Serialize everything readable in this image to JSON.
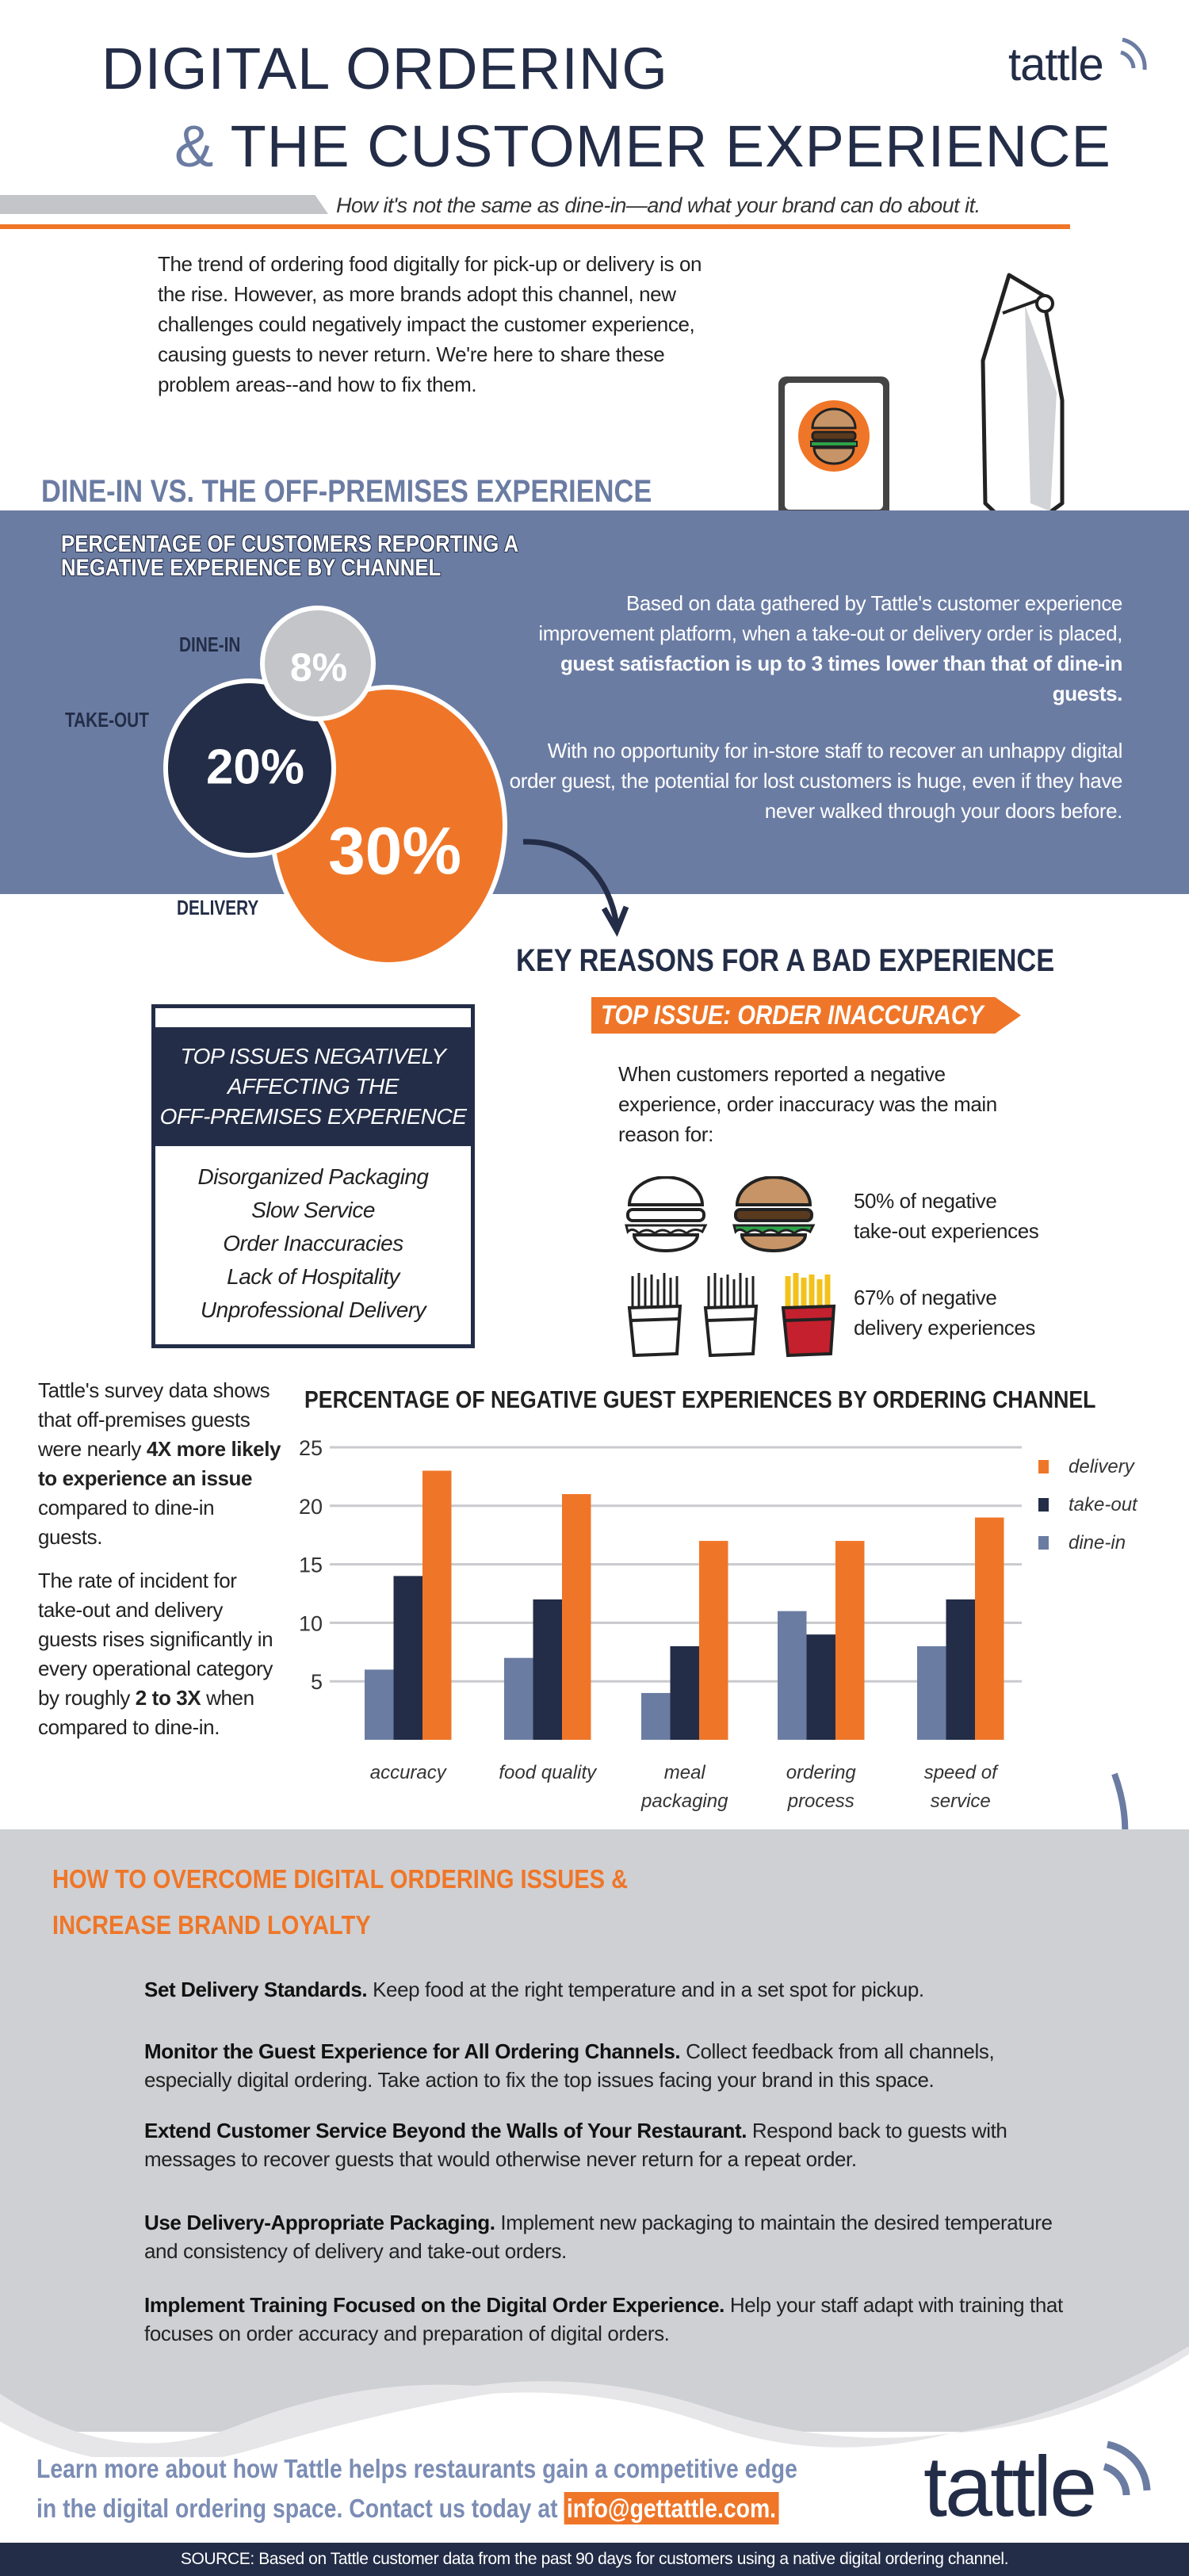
{
  "header": {
    "title_line1": "DIGITAL ORDERING",
    "title_amp": "&",
    "title_line2": "THE CUSTOMER EXPERIENCE",
    "subtitle": "How it's not the same as dine-in—and what your brand can do about it.",
    "logo_text": "tattle"
  },
  "intro": "The trend of ordering food digitally for pick-up or delivery is on the rise. However, as more brands adopt this channel, new challenges could negatively impact the customer experience, causing guests to never return. We're here to share these problem areas--and how to fix them.",
  "section1": {
    "heading": "DINE-IN VS. THE OFF-PREMISES EXPERIENCE",
    "chart_title_line1": "PERCENTAGE OF CUSTOMERS REPORTING A",
    "chart_title_line2": "NEGATIVE EXPERIENCE BY CHANNEL",
    "channels": [
      {
        "label": "DINE-IN",
        "value": "8%",
        "color": "#c4c5c9"
      },
      {
        "label": "TAKE-OUT",
        "value": "20%",
        "color": "#232d47"
      },
      {
        "label": "DELIVERY",
        "value": "30%",
        "color": "#ef7628"
      }
    ],
    "para1_normal": "Based on data gathered by Tattle's customer experience improvement platform, when a take-out or delivery order is placed, ",
    "para1_bold": "guest satisfaction is up to 3 times lower than that of dine-in guests.",
    "para2": "With no opportunity for in-store staff to recover an unhappy digital order guest, the potential for lost customers is huge, even if they have never walked through your doors before."
  },
  "section2": {
    "heading": "KEY REASONS FOR A BAD EXPERIENCE",
    "top_issue_tag": "TOP ISSUE: ORDER INACCURACY",
    "top_issue_text": "When customers reported a negative experience, order inaccuracy was the main reason for:",
    "stat_takeout_line1": "50% of negative",
    "stat_takeout_line2": "take-out experiences",
    "stat_delivery_line1": "67% of negative",
    "stat_delivery_line2": "delivery experiences",
    "issues_box_title_lines": [
      "TOP ISSUES NEGATIVELY",
      "AFFECTING THE",
      "OFF-PREMISES EXPERIENCE"
    ],
    "issues": [
      "Disorganized Packaging",
      "Slow Service",
      "Order Inaccuracies",
      "Lack of Hospitality",
      "Unprofessional Delivery"
    ]
  },
  "survey": {
    "p1_a": "Tattle's survey data shows that off-premises guests were nearly ",
    "p1_bold": "4X more likely to experience an issue",
    "p1_b": " compared to dine-in guests.",
    "p2_a": "The rate of incident for take-out and delivery guests rises significantly in every operational category by roughly ",
    "p2_bold": "2 to 3X",
    "p2_b": " when compared to dine-in."
  },
  "chart_data": {
    "type": "bar",
    "title": "PERCENTAGE OF NEGATIVE GUEST EXPERIENCES BY ORDERING CHANNEL",
    "categories": [
      [
        "accuracy"
      ],
      [
        "food quality"
      ],
      [
        "meal",
        "packaging"
      ],
      [
        "ordering",
        "process"
      ],
      [
        "speed of",
        "service"
      ]
    ],
    "series": [
      {
        "name": "dine-in",
        "color": "#6b7ca3",
        "values": [
          6,
          7,
          4,
          11,
          8
        ]
      },
      {
        "name": "take-out",
        "color": "#232d47",
        "values": [
          14,
          12,
          8,
          9,
          12
        ]
      },
      {
        "name": "delivery",
        "color": "#ef7628",
        "values": [
          23,
          21,
          17,
          17,
          19
        ]
      }
    ],
    "legend_order": [
      "delivery",
      "take-out",
      "dine-in"
    ],
    "ylim": [
      0,
      25
    ],
    "yticks": [
      5,
      10,
      15,
      20,
      25
    ],
    "grid": true,
    "legend": "right"
  },
  "section3": {
    "heading_line1": "HOW TO OVERCOME DIGITAL ORDERING ISSUES &",
    "heading_line2": "INCREASE BRAND LOYALTY",
    "items": [
      {
        "title": "Set Delivery Standards.",
        "text": " Keep food at the right temperature and in a set spot for pickup."
      },
      {
        "title": "Monitor the Guest Experience for All Ordering Channels.",
        "text": " Collect feedback from all channels, especially digital ordering. Take action to fix the top issues facing your brand in this space."
      },
      {
        "title": "Extend Customer Service Beyond the Walls of Your Restaurant.",
        "text": " Respond back to guests with messages to recover guests that would otherwise never return for a repeat order."
      },
      {
        "title": "Use Delivery-Appropriate Packaging.",
        "text": " Implement new packaging to maintain the desired temperature and consistency of delivery and take-out orders."
      },
      {
        "title": "Implement Training Focused on the Digital Order Experience.",
        "text": " Help your staff adapt with training that focuses on order accuracy and preparation of digital orders."
      }
    ]
  },
  "footer": {
    "cta_line1": "Learn more about how Tattle helps restaurants gain a competitive edge",
    "cta_line2": "in the digital ordering space. Contact us today at ",
    "email": "info@gettattle.com.",
    "logo_text": "tattle",
    "source": "SOURCE: Based on Tattle customer data from the past 90 days for customers using a native digital ordering channel."
  },
  "colors": {
    "navy": "#232d47",
    "slate": "#6b7ca3",
    "orange": "#ef7628",
    "gray": "#c4c5c9",
    "light_gray": "#cfd0d3"
  }
}
